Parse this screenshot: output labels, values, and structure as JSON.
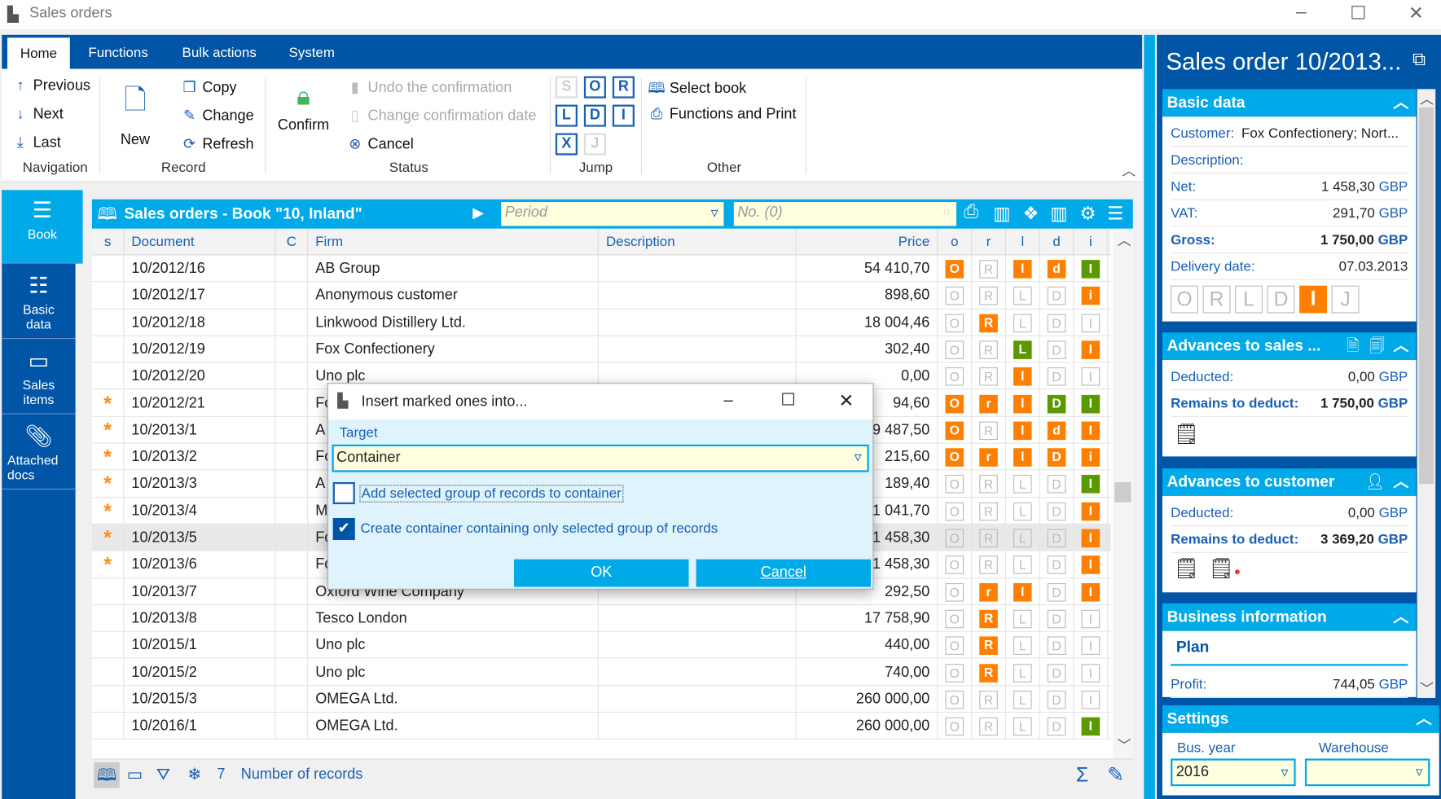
{
  "window": {
    "title": "Sales orders"
  },
  "tabs": [
    "Home",
    "Functions",
    "Bulk actions",
    "System"
  ],
  "ribbon": {
    "navigation": {
      "label": "Navigation",
      "items": [
        "Previous",
        "Next",
        "Last"
      ]
    },
    "record": {
      "label": "Record",
      "new": "New",
      "items": [
        "Copy",
        "Change",
        "Refresh"
      ]
    },
    "status": {
      "label": "Status",
      "confirm": "Confirm",
      "items": [
        "Undo the confirmation",
        "Change confirmation date",
        "Cancel"
      ]
    },
    "jump": {
      "label": "Jump",
      "buttons": [
        [
          "S",
          false
        ],
        [
          "O",
          true
        ],
        [
          "R",
          true
        ],
        [
          "L",
          true
        ],
        [
          "D",
          true
        ],
        [
          "I",
          true
        ],
        [
          "X",
          true
        ],
        [
          "J",
          false
        ]
      ]
    },
    "other": {
      "label": "Other",
      "items": [
        "Select book",
        "Functions and Print"
      ]
    }
  },
  "sidebar": [
    "Book",
    "Basic data",
    "Sales items",
    "Attached docs"
  ],
  "grid": {
    "title": "Sales orders - Book \"10, Inland\"",
    "period_placeholder": "Period",
    "number_placeholder": "No. (0)",
    "columns": [
      "s",
      "Document",
      "C",
      "Firm",
      "Description",
      "Price",
      "o",
      "r",
      "l",
      "d",
      "i"
    ],
    "rows": [
      {
        "m": "",
        "doc": "10/2012/16",
        "firm": "AB Group",
        "price": "54 410,70",
        "st": [
          [
            "O",
            "orange"
          ],
          [
            "R",
            "out"
          ],
          [
            "l",
            "orange"
          ],
          [
            "d",
            "orange"
          ],
          [
            "I",
            "green"
          ]
        ]
      },
      {
        "m": "",
        "doc": "10/2012/17",
        "firm": "Anonymous customer",
        "price": "898,60",
        "st": [
          [
            "O",
            "out"
          ],
          [
            "R",
            "out"
          ],
          [
            "L",
            "out"
          ],
          [
            "D",
            "out"
          ],
          [
            "i",
            "orange"
          ]
        ]
      },
      {
        "m": "",
        "doc": "10/2012/18",
        "firm": "Linkwood Distillery Ltd.",
        "price": "18 004,46",
        "st": [
          [
            "O",
            "out"
          ],
          [
            "R",
            "orange"
          ],
          [
            "L",
            "out"
          ],
          [
            "D",
            "out"
          ],
          [
            "I",
            "out"
          ]
        ]
      },
      {
        "m": "",
        "doc": "10/2012/19",
        "firm": "Fox Confectionery",
        "price": "302,40",
        "st": [
          [
            "O",
            "out"
          ],
          [
            "R",
            "out"
          ],
          [
            "L",
            "green"
          ],
          [
            "D",
            "out"
          ],
          [
            "I",
            "orange"
          ]
        ]
      },
      {
        "m": "",
        "doc": "10/2012/20",
        "firm": "Uno plc",
        "price": "0,00",
        "st": [
          [
            "O",
            "out"
          ],
          [
            "R",
            "out"
          ],
          [
            "l",
            "orange"
          ],
          [
            "D",
            "out"
          ],
          [
            "I",
            "out"
          ]
        ]
      },
      {
        "m": "*",
        "doc": "10/2012/21",
        "firm": "Fo",
        "price": "94,60",
        "st": [
          [
            "O",
            "orange"
          ],
          [
            "r",
            "orange"
          ],
          [
            "l",
            "orange"
          ],
          [
            "D",
            "green"
          ],
          [
            "I",
            "green"
          ]
        ]
      },
      {
        "m": "*",
        "doc": "10/2013/1",
        "firm": "A",
        "price": "9 487,50",
        "st": [
          [
            "O",
            "orange"
          ],
          [
            "R",
            "out"
          ],
          [
            "l",
            "orange"
          ],
          [
            "d",
            "orange"
          ],
          [
            "I",
            "orange"
          ]
        ]
      },
      {
        "m": "*",
        "doc": "10/2013/2",
        "firm": "Fo",
        "price": "215,60",
        "st": [
          [
            "O",
            "orange"
          ],
          [
            "r",
            "orange"
          ],
          [
            "l",
            "orange"
          ],
          [
            "D",
            "orange"
          ],
          [
            "i",
            "orange"
          ]
        ]
      },
      {
        "m": "*",
        "doc": "10/2013/3",
        "firm": "A",
        "price": "189,40",
        "st": [
          [
            "O",
            "out"
          ],
          [
            "R",
            "out"
          ],
          [
            "L",
            "out"
          ],
          [
            "D",
            "out"
          ],
          [
            "I",
            "green"
          ]
        ]
      },
      {
        "m": "*",
        "doc": "10/2013/4",
        "firm": "M",
        "price": "1 041,70",
        "st": [
          [
            "O",
            "out"
          ],
          [
            "R",
            "out"
          ],
          [
            "L",
            "out"
          ],
          [
            "D",
            "out"
          ],
          [
            "I",
            "orange"
          ]
        ]
      },
      {
        "m": "*",
        "doc": "10/2013/5",
        "firm": "Fo",
        "price": "1 458,30",
        "selected": true,
        "st": [
          [
            "O",
            "out"
          ],
          [
            "R",
            "out"
          ],
          [
            "L",
            "out"
          ],
          [
            "D",
            "out"
          ],
          [
            "I",
            "orange"
          ]
        ]
      },
      {
        "m": "*",
        "doc": "10/2013/6",
        "firm": "Fo",
        "price": "1 458,30",
        "st": [
          [
            "O",
            "out"
          ],
          [
            "R",
            "out"
          ],
          [
            "L",
            "out"
          ],
          [
            "D",
            "out"
          ],
          [
            "I",
            "orange"
          ]
        ]
      },
      {
        "m": "",
        "doc": "10/2013/7",
        "firm": "Oxford Wine Company",
        "price": "292,50",
        "st": [
          [
            "O",
            "out"
          ],
          [
            "r",
            "orange"
          ],
          [
            "l",
            "orange"
          ],
          [
            "D",
            "out"
          ],
          [
            "I",
            "orange"
          ]
        ]
      },
      {
        "m": "",
        "doc": "10/2013/8",
        "firm": "Tesco London",
        "price": "17 758,90",
        "st": [
          [
            "O",
            "out"
          ],
          [
            "R",
            "orange"
          ],
          [
            "L",
            "out"
          ],
          [
            "D",
            "out"
          ],
          [
            "I",
            "out"
          ]
        ]
      },
      {
        "m": "",
        "doc": "10/2015/1",
        "firm": "Uno plc",
        "price": "440,00",
        "st": [
          [
            "O",
            "out"
          ],
          [
            "R",
            "orange"
          ],
          [
            "L",
            "out"
          ],
          [
            "D",
            "out"
          ],
          [
            "I",
            "out"
          ]
        ]
      },
      {
        "m": "",
        "doc": "10/2015/2",
        "firm": "Uno plc",
        "price": "740,00",
        "st": [
          [
            "O",
            "out"
          ],
          [
            "R",
            "orange"
          ],
          [
            "L",
            "out"
          ],
          [
            "D",
            "out"
          ],
          [
            "I",
            "out"
          ]
        ]
      },
      {
        "m": "",
        "doc": "10/2015/3",
        "firm": "OMEGA Ltd.",
        "price": "260 000,00",
        "st": [
          [
            "O",
            "out"
          ],
          [
            "R",
            "out"
          ],
          [
            "L",
            "out"
          ],
          [
            "D",
            "out"
          ],
          [
            "I",
            "out"
          ]
        ]
      },
      {
        "m": "",
        "doc": "10/2016/1",
        "firm": "OMEGA Ltd.",
        "price": "260 000,00",
        "st": [
          [
            "O",
            "out"
          ],
          [
            "R",
            "out"
          ],
          [
            "L",
            "out"
          ],
          [
            "D",
            "out"
          ],
          [
            "I",
            "green"
          ]
        ]
      }
    ],
    "footer": {
      "marked_count": "7",
      "records_label": "Number of records"
    }
  },
  "dialog": {
    "title": "Insert marked ones into...",
    "target_label": "Target",
    "target_value": "Container",
    "option1": {
      "label": "Add selected group of records to container",
      "checked": false
    },
    "option2": {
      "label": "Create container containing only selected group of records",
      "checked": true
    },
    "ok": "OK",
    "cancel": "Cancel"
  },
  "panel": {
    "title": "Sales order 10/2013...",
    "basic": {
      "header": "Basic data",
      "customer_label": "Customer:",
      "customer": "Fox Confectionery; Nort...",
      "description_label": "Description:",
      "net_label": "Net:",
      "net": "1 458,30",
      "vat_label": "VAT:",
      "vat": "291,70",
      "gross_label": "Gross:",
      "gross": "1 750,00",
      "currency": "GBP",
      "delivery_label": "Delivery date:",
      "delivery": "07.03.2013",
      "status": [
        [
          "O",
          "out"
        ],
        [
          "R",
          "out"
        ],
        [
          "L",
          "out"
        ],
        [
          "D",
          "out"
        ],
        [
          "I",
          "orange"
        ],
        [
          "J",
          "out"
        ]
      ]
    },
    "adv_sales": {
      "header": "Advances to sales ...",
      "deducted_label": "Deducted:",
      "deducted": "0,00",
      "remains_label": "Remains to deduct:",
      "remains": "1 750,00"
    },
    "adv_customer": {
      "header": "Advances to customer",
      "deducted_label": "Deducted:",
      "deducted": "0,00",
      "remains_label": "Remains to deduct:",
      "remains": "3 369,20"
    },
    "business": {
      "header": "Business information",
      "tab": "Plan",
      "profit_label": "Profit:",
      "profit": "744,05"
    },
    "settings": {
      "header": "Settings",
      "year_label": "Bus. year",
      "year": "2016",
      "warehouse_label": "Warehouse",
      "warehouse": ""
    }
  },
  "colors": {
    "dark_blue": "#0055a6",
    "accent": "#00a9e8",
    "orange": "#ff8000",
    "green": "#5a9a00"
  }
}
